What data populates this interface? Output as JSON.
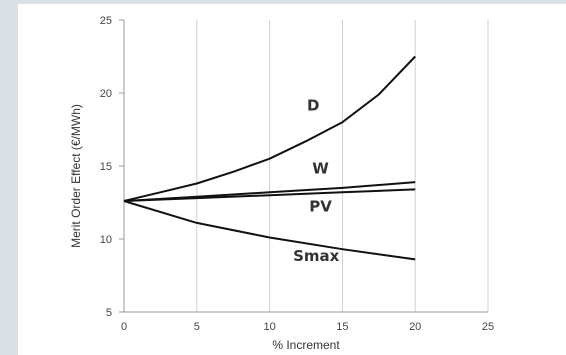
{
  "chart_data": {
    "type": "line",
    "xlabel": "% Increment",
    "ylabel": "Merit Order Effect (€/MWh)",
    "xlim": [
      0,
      25
    ],
    "ylim": [
      5,
      25
    ],
    "xticks": [
      0,
      5,
      10,
      15,
      20,
      25
    ],
    "yticks": [
      5,
      10,
      15,
      20,
      25
    ],
    "grid": "vertical",
    "series": [
      {
        "name": "D",
        "x": [
          0,
          2.5,
          5,
          7.5,
          10,
          12.5,
          15,
          17.5,
          20
        ],
        "y": [
          12.6,
          13.2,
          13.8,
          14.6,
          15.5,
          16.7,
          18.0,
          19.9,
          22.5
        ]
      },
      {
        "name": "W",
        "x": [
          0,
          5,
          10,
          15,
          20
        ],
        "y": [
          12.6,
          12.9,
          13.2,
          13.5,
          13.9
        ]
      },
      {
        "name": "PV",
        "x": [
          0,
          5,
          10,
          15,
          20
        ],
        "y": [
          12.6,
          12.8,
          13.0,
          13.2,
          13.4
        ]
      },
      {
        "name": "Smax",
        "x": [
          0,
          5,
          10,
          15,
          20
        ],
        "y": [
          12.6,
          11.1,
          10.1,
          9.3,
          8.6
        ]
      }
    ]
  },
  "colors": {
    "line": "#111111",
    "grid": "#d0d0d0",
    "axis": "#999999"
  }
}
